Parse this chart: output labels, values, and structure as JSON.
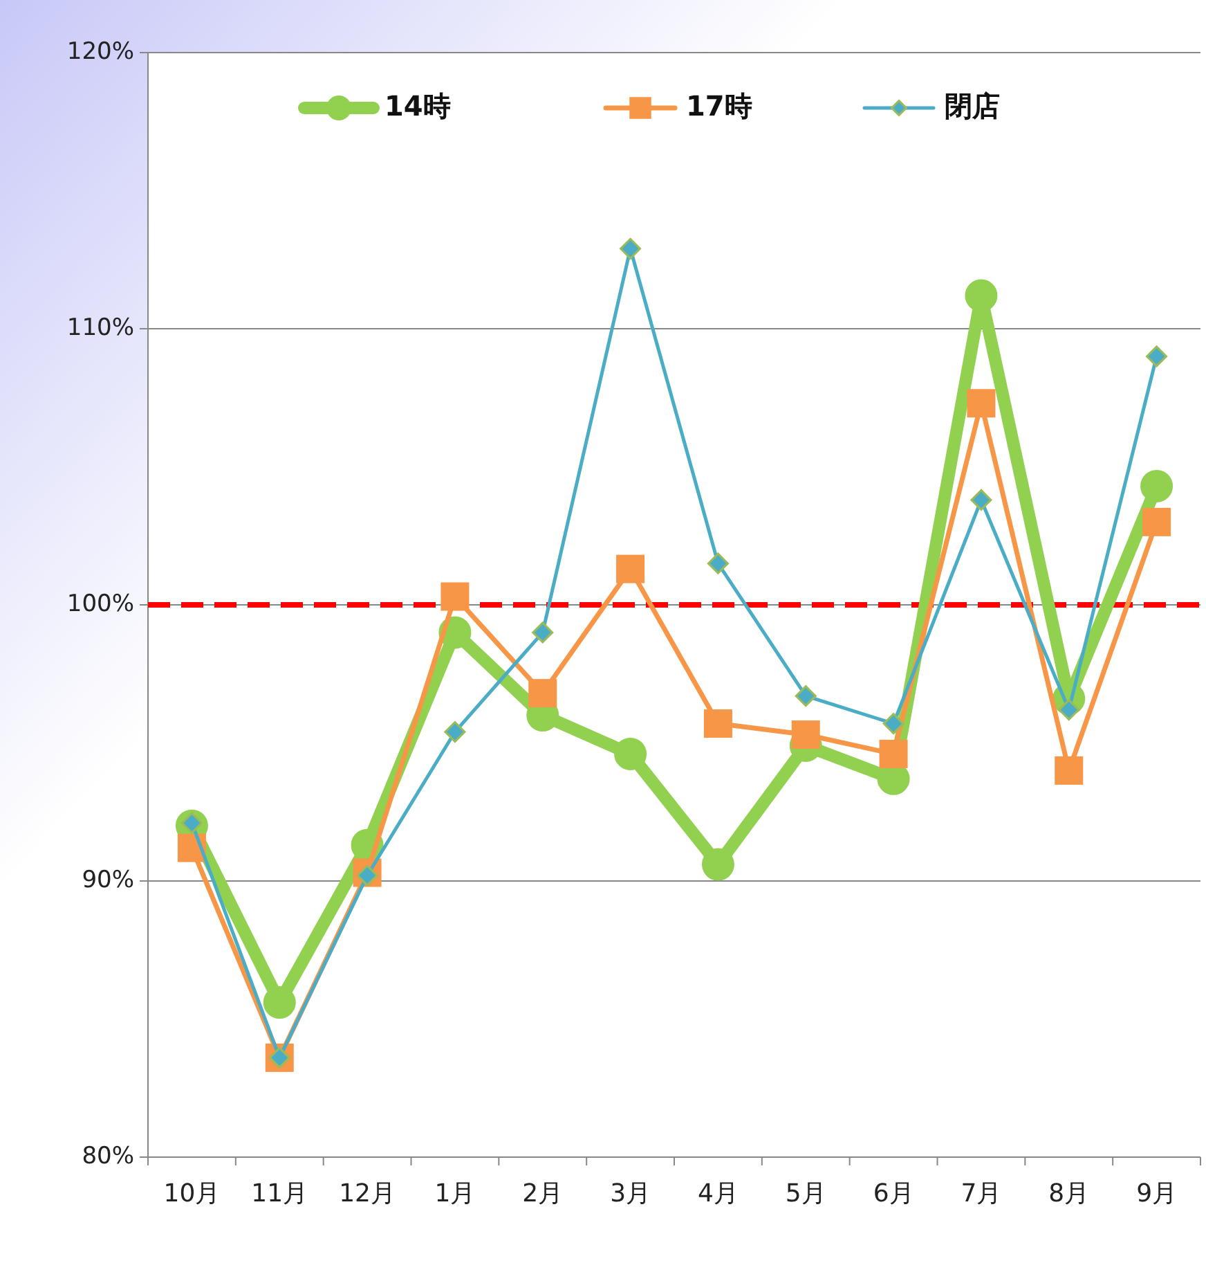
{
  "chart_data": {
    "type": "line",
    "categories": [
      "10月",
      "11月",
      "12月",
      "1月",
      "2月",
      "3月",
      "4月",
      "5月",
      "6月",
      "7月",
      "8月",
      "9月"
    ],
    "series": [
      {
        "name": "14時",
        "color": "#92d050",
        "marker": "circle",
        "values": [
          92.0,
          85.6,
          91.3,
          99.0,
          96.0,
          94.6,
          90.6,
          94.9,
          93.7,
          111.2,
          96.6,
          104.3
        ]
      },
      {
        "name": "17時",
        "color": "#f79646",
        "marker": "square",
        "values": [
          91.2,
          83.6,
          90.3,
          100.3,
          96.8,
          101.3,
          95.7,
          95.3,
          94.6,
          107.3,
          94.0,
          103.0
        ]
      },
      {
        "name": "閉店",
        "color": "#4bacc6",
        "marker": "diamond",
        "values": [
          92.1,
          83.6,
          90.2,
          95.4,
          99.0,
          112.9,
          101.5,
          96.7,
          95.7,
          103.8,
          96.2,
          109.0
        ]
      }
    ],
    "ylim": [
      80,
      120
    ],
    "yticks": [
      {
        "value": 80,
        "label": "80%"
      },
      {
        "value": 90,
        "label": "90%"
      },
      {
        "value": 100,
        "label": "100%"
      },
      {
        "value": 110,
        "label": "110%"
      },
      {
        "value": 120,
        "label": "120%"
      }
    ],
    "grid": "y",
    "legend": "top",
    "line_style": "solid",
    "ref_lines": [
      {
        "axis": "y",
        "value": 100,
        "color": "#ff0000",
        "line_style": "dashed"
      }
    ]
  }
}
